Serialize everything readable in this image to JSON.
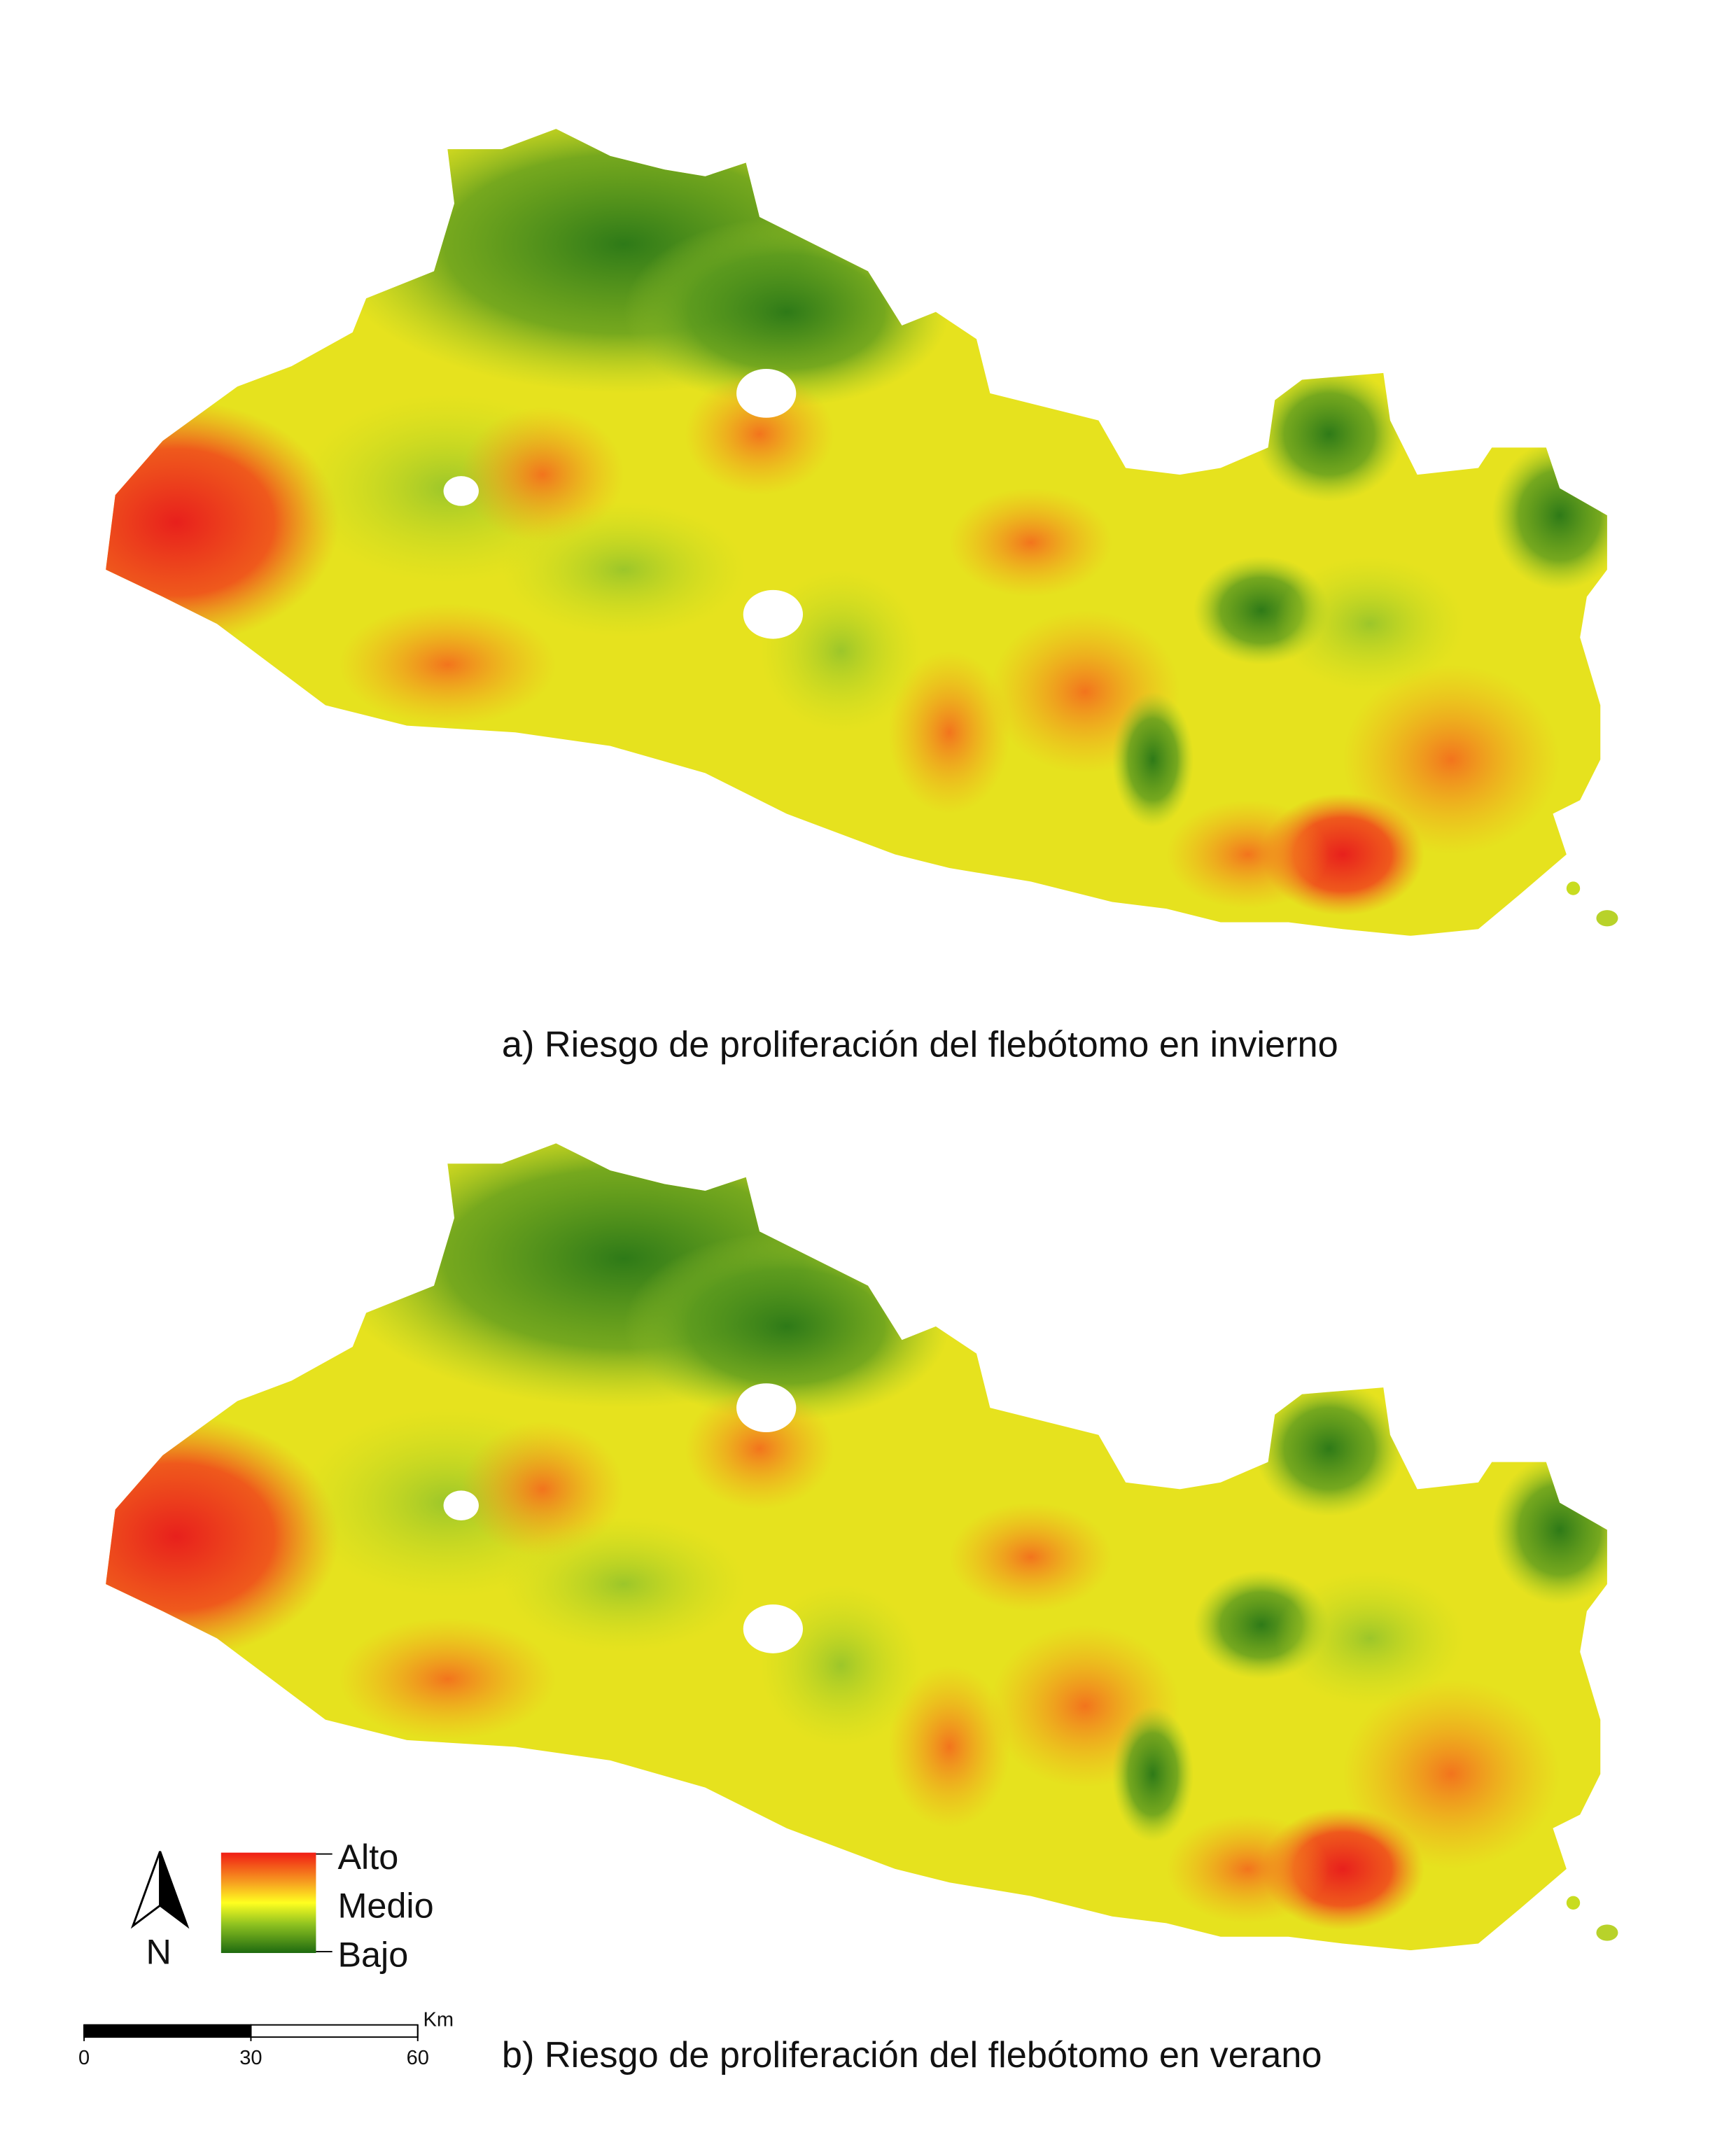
{
  "maps": [
    {
      "caption": "a) Riesgo de proliferación del flebótomo en invierno"
    },
    {
      "caption": "b) Riesgo de proliferación del flebótomo en verano"
    }
  ],
  "legend": {
    "high": "Alto",
    "mid": "Medio",
    "low": "Bajo"
  },
  "north": "N",
  "scale_bar": {
    "unit": "Km",
    "ticks": [
      0,
      30,
      60
    ]
  }
}
